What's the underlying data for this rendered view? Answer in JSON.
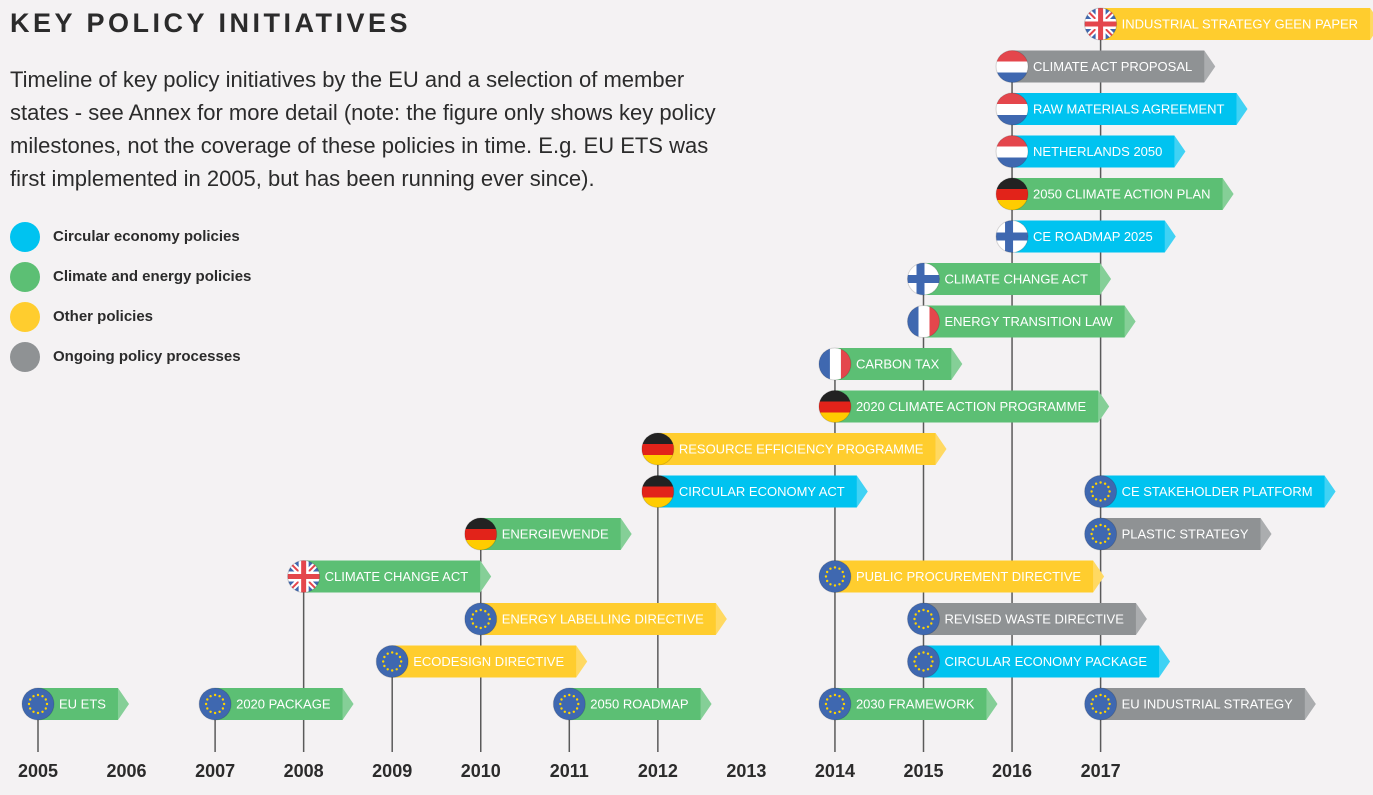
{
  "header": {
    "title": "KEY POLICY INITIATIVES",
    "description": [
      "Timeline of key policy initiatives by the EU and a selection of member",
      "states - see Annex for more detail (note: the figure only shows key policy",
      "milestones, not the coverage of these policies in time. E.g. EU ETS was",
      "first implemented in 2005, but has been running ever since)."
    ]
  },
  "legend": [
    {
      "label": "Circular economy policies",
      "color": "#00c3f0"
    },
    {
      "label": "Climate and energy policies",
      "color": "#5cbf74"
    },
    {
      "label": "Other policies",
      "color": "#ffcd2e"
    },
    {
      "label": "Ongoing policy processes",
      "color": "#8f9294"
    }
  ],
  "timeline": [
    {
      "year": "2005",
      "initiatives": [
        {
          "label": "EU ETS",
          "color": "#5cbf74",
          "flag": "eu"
        }
      ]
    },
    {
      "year": "2006",
      "initiatives": []
    },
    {
      "year": "2007",
      "initiatives": [
        {
          "label": "2020 PACKAGE",
          "color": "#5cbf74",
          "flag": "eu"
        }
      ]
    },
    {
      "year": "2008",
      "initiatives": [
        {
          "label": "CLIMATE CHANGE ACT",
          "color": "#5cbf74",
          "flag": "uk"
        }
      ]
    },
    {
      "year": "2009",
      "initiatives": [
        {
          "label": "ECODESIGN DIRECTIVE",
          "color": "#ffcd2e",
          "flag": "eu"
        }
      ]
    },
    {
      "year": "2010",
      "initiatives": [
        {
          "label": "ENERGY LABELLING DIRECTIVE",
          "color": "#ffcd2e",
          "flag": "eu"
        },
        {
          "label": "ENERGIEWENDE",
          "color": "#5cbf74",
          "flag": "de"
        }
      ]
    },
    {
      "year": "2011",
      "initiatives": [
        {
          "label": "2050 ROADMAP",
          "color": "#5cbf74",
          "flag": "eu"
        }
      ]
    },
    {
      "year": "2012",
      "initiatives": [
        {
          "label": "CIRCULAR ECONOMY ACT",
          "color": "#00c3f0",
          "flag": "de"
        },
        {
          "label": "RESOURCE EFFICIENCY PROGRAMME",
          "color": "#ffcd2e",
          "flag": "de"
        }
      ]
    },
    {
      "year": "2013",
      "initiatives": []
    },
    {
      "year": "2014",
      "initiatives": [
        {
          "label": "2030 FRAMEWORK",
          "color": "#5cbf74",
          "flag": "eu"
        },
        {
          "label": "PUBLIC PROCUREMENT DIRECTIVE",
          "color": "#ffcd2e",
          "flag": "eu"
        },
        {
          "label": "2020 CLIMATE ACTION PROGRAMME",
          "color": "#5cbf74",
          "flag": "de"
        },
        {
          "label": "CARBON TAX",
          "color": "#5cbf74",
          "flag": "fr"
        }
      ]
    },
    {
      "year": "2015",
      "initiatives": [
        {
          "label": "CIRCULAR ECONOMY PACKAGE",
          "color": "#00c3f0",
          "flag": "eu"
        },
        {
          "label": "REVISED WASTE DIRECTIVE",
          "color": "#8f9294",
          "flag": "eu"
        },
        {
          "label": "ENERGY TRANSITION LAW",
          "color": "#5cbf74",
          "flag": "fr"
        },
        {
          "label": "CLIMATE CHANGE ACT",
          "color": "#5cbf74",
          "flag": "fi"
        }
      ]
    },
    {
      "year": "2016",
      "initiatives": [
        {
          "label": "CE ROADMAP 2025",
          "color": "#00c3f0",
          "flag": "fi"
        },
        {
          "label": "2050 CLIMATE ACTION PLAN",
          "color": "#5cbf74",
          "flag": "de"
        },
        {
          "label": "NETHERLANDS 2050",
          "color": "#00c3f0",
          "flag": "nl"
        },
        {
          "label": "RAW MATERIALS AGREEMENT",
          "color": "#00c3f0",
          "flag": "nl"
        },
        {
          "label": "CLIMATE ACT PROPOSAL",
          "color": "#8f9294",
          "flag": "nl"
        }
      ]
    },
    {
      "year": "2017",
      "initiatives": [
        {
          "label": "EU INDUSTRIAL STRATEGY",
          "color": "#8f9294",
          "flag": "eu"
        },
        {
          "label": "PLASTIC STRATEGY",
          "color": "#8f9294",
          "flag": "eu"
        },
        {
          "label": "CE STAKEHOLDER PLATFORM",
          "color": "#00c3f0",
          "flag": "eu"
        },
        {
          "label": "INDUSTRIAL STRATEGY GEEN PAPER",
          "color": "#ffcd2e",
          "flag": "uk"
        }
      ]
    }
  ]
}
